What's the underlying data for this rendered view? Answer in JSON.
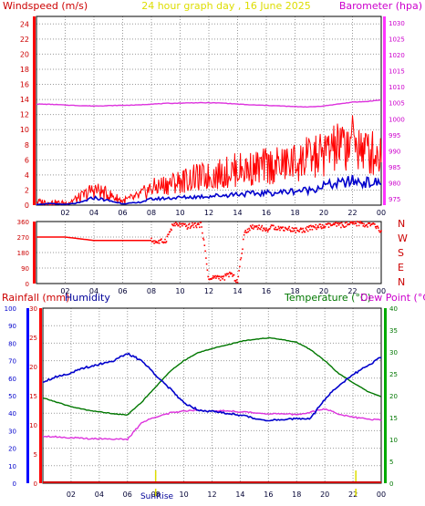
{
  "header": {
    "left": "Windspeed (m/s)",
    "center": "24 hour graph day , 16 June 2025",
    "right": "Barometer (hpa)"
  },
  "middle": {
    "compass": [
      "N",
      "W",
      "S",
      "E",
      "N"
    ]
  },
  "bottom_header": {
    "rainfall": "Rainfall (mm)",
    "humidity": "Humidity",
    "temperature": "Temperature (°C)",
    "dewpoint": "Dew Point (°C)"
  },
  "sunrise": "SunRise",
  "colors": {
    "wind": "#ff0000",
    "avg_wind": "#0000cc",
    "barometer": "#dd33dd",
    "direction": "#ff0000",
    "humidity": "#0000cc",
    "temperature": "#007700",
    "dewpoint": "#dd33dd",
    "rain": "#cc0000",
    "grid": "#999999"
  },
  "chart_data": [
    {
      "type": "line",
      "x_ticks": [
        "02",
        "04",
        "06",
        "08",
        "10",
        "12",
        "14",
        "16",
        "18",
        "20",
        "22",
        "00"
      ],
      "ylim_left": [
        0,
        25
      ],
      "y_ticks_left": [
        0,
        2,
        4,
        6,
        8,
        10,
        12,
        14,
        16,
        18,
        20,
        22,
        24
      ],
      "ylim_right": [
        973,
        1032
      ],
      "y_ticks_right": [
        975,
        980,
        985,
        990,
        995,
        1000,
        1005,
        1010,
        1015,
        1020,
        1025,
        1030
      ],
      "series": [
        {
          "axis": "right",
          "x": [
            0,
            1,
            2,
            3,
            4,
            5,
            6,
            7,
            8,
            9,
            10,
            11,
            12,
            13,
            14,
            15,
            16,
            17,
            18,
            19,
            20,
            21,
            22,
            23,
            24
          ],
          "values": [
            1004.6,
            1004.5,
            1004.3,
            1004.1,
            1004.0,
            1004.1,
            1004.2,
            1004.3,
            1004.6,
            1004.8,
            1004.9,
            1005.0,
            1005.0,
            1004.9,
            1004.6,
            1004.3,
            1004.2,
            1004.0,
            1003.8,
            1003.7,
            1004.0,
            1004.6,
            1005.2,
            1005.4,
            1005.9
          ]
        },
        {
          "axis": "left",
          "x": [
            0,
            1,
            2,
            3,
            4,
            5,
            6,
            7,
            8,
            9,
            10,
            11,
            12,
            13,
            14,
            15,
            16,
            17,
            18,
            19,
            20,
            21,
            22,
            23,
            24
          ],
          "values": [
            0.1,
            0.2,
            0.1,
            0.3,
            1.0,
            0.6,
            0.2,
            0.3,
            0.8,
            0.9,
            1.0,
            1.1,
            1.2,
            1.3,
            1.5,
            1.5,
            1.6,
            1.7,
            1.9,
            2.0,
            2.6,
            2.8,
            3.2,
            3.0,
            2.9
          ]
        },
        {
          "axis": "left",
          "x": [
            0,
            1,
            2,
            3,
            4,
            5,
            6,
            7,
            8,
            9,
            10,
            11,
            12,
            13,
            14,
            15,
            16,
            17,
            18,
            19,
            20,
            21,
            22,
            23,
            24
          ],
          "values": [
            0.4,
            0.3,
            0.2,
            0.9,
            2.0,
            1.3,
            0.5,
            1.0,
            2.1,
            2.6,
            3.0,
            3.4,
            3.6,
            4.0,
            4.5,
            4.6,
            4.9,
            5.0,
            5.4,
            5.8,
            6.5,
            7.2,
            7.8,
            6.8,
            6.4
          ]
        }
      ]
    },
    {
      "type": "scatter",
      "x_ticks": [
        "02",
        "04",
        "06",
        "08",
        "10",
        "12",
        "14",
        "16",
        "18",
        "20",
        "22",
        "00"
      ],
      "ylim": [
        0,
        360
      ],
      "y_ticks": [
        0,
        90,
        180,
        270,
        360
      ],
      "series": [
        {
          "x": [
            0,
            2,
            4,
            5,
            6,
            7,
            8,
            8.5,
            9,
            9.5,
            10,
            10.5,
            11,
            11.5,
            12,
            12.5,
            13,
            13.5,
            14,
            14.5,
            15,
            15.5,
            16,
            16.5,
            17,
            17.5,
            18,
            18.5,
            19,
            19.5,
            20,
            20.5,
            21,
            21.5,
            22,
            22.5,
            23,
            23.5,
            24
          ],
          "values": [
            270,
            270,
            250,
            250,
            250,
            250,
            250,
            240,
            250,
            340,
            340,
            330,
            340,
            340,
            20,
            40,
            30,
            60,
            10,
            300,
            330,
            330,
            310,
            330,
            320,
            320,
            310,
            310,
            320,
            330,
            330,
            340,
            340,
            340,
            345,
            350,
            340,
            340,
            300
          ]
        }
      ]
    },
    {
      "type": "line",
      "x_ticks": [
        "02",
        "04",
        "06",
        "08",
        "10",
        "12",
        "14",
        "16",
        "18",
        "20",
        "22",
        "00"
      ],
      "ylim_humidity": [
        0,
        100
      ],
      "y_ticks_humidity": [
        0,
        10,
        20,
        30,
        40,
        50,
        60,
        70,
        80,
        90,
        100
      ],
      "ylim_rain": [
        0,
        30
      ],
      "y_ticks_rain": [
        0,
        5,
        10,
        15,
        20,
        25,
        30
      ],
      "ylim_temp": [
        0,
        40
      ],
      "y_ticks_temp": [
        0,
        5,
        10,
        15,
        20,
        25,
        30,
        35,
        40
      ],
      "series": [
        {
          "axis": "humidity",
          "x": [
            0,
            1,
            2,
            3,
            4,
            5,
            6,
            7,
            8,
            9,
            10,
            11,
            12,
            13,
            14,
            15,
            16,
            17,
            18,
            19,
            20,
            21,
            22,
            23,
            24
          ],
          "values": [
            58,
            61,
            63,
            66,
            68,
            70,
            74,
            70,
            62,
            54,
            46,
            42,
            41,
            40,
            39,
            37,
            36,
            36,
            37,
            37,
            48,
            56,
            62,
            67,
            72
          ]
        },
        {
          "axis": "temp",
          "x": [
            0,
            1,
            2,
            3,
            4,
            5,
            6,
            7,
            8,
            9,
            10,
            11,
            12,
            13,
            14,
            15,
            16,
            17,
            18,
            19,
            20,
            21,
            22,
            23,
            24
          ],
          "values": [
            19.5,
            18.5,
            17.5,
            16.8,
            16.3,
            15.9,
            15.6,
            18.5,
            22,
            25.5,
            28,
            29.8,
            30.8,
            31.5,
            32.4,
            32.9,
            33.2,
            32.8,
            32.2,
            30.5,
            28,
            25,
            23,
            21,
            19.8
          ]
        },
        {
          "axis": "temp",
          "x": [
            0,
            1,
            2,
            3,
            4,
            5,
            6,
            7,
            8,
            9,
            10,
            11,
            12,
            13,
            14,
            15,
            16,
            17,
            18,
            19,
            20,
            21,
            22,
            23,
            24
          ],
          "values": [
            10.8,
            10.6,
            10.4,
            10.2,
            10.2,
            10.1,
            10.0,
            13.8,
            15.2,
            16.0,
            16.5,
            16.8,
            16.4,
            16.6,
            16.3,
            16.1,
            15.9,
            15.8,
            15.7,
            16.2,
            17.0,
            15.8,
            15.1,
            14.7,
            14.4
          ]
        },
        {
          "axis": "rain",
          "x": [
            0,
            24
          ],
          "values": [
            0,
            0
          ]
        }
      ]
    }
  ]
}
